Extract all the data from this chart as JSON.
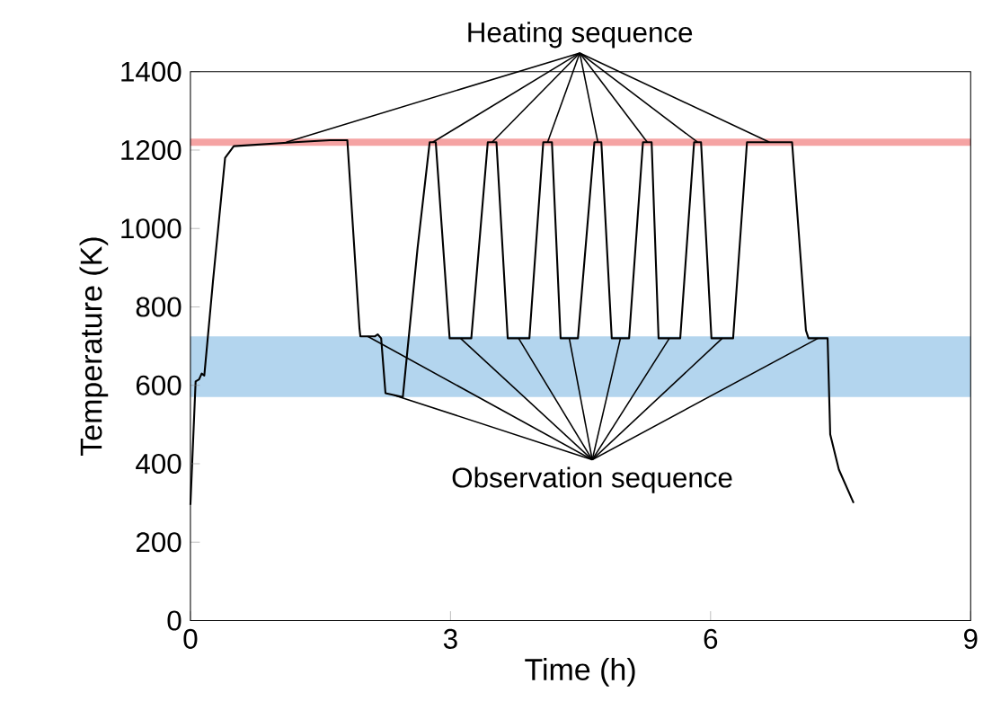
{
  "chart_data": {
    "type": "line",
    "xlabel": "Time (h)",
    "ylabel": "Temperature (K)",
    "xlim": [
      0,
      9
    ],
    "xticks": [
      0,
      3,
      6,
      9
    ],
    "ylim": [
      0,
      1400
    ],
    "yticks": [
      0,
      200,
      400,
      600,
      800,
      1000,
      1200,
      1400
    ],
    "grid": false,
    "series": [
      {
        "color": "#000000",
        "x": [
          0,
          0.06,
          0.1,
          0.13,
          0.16,
          0.26,
          0.4,
          0.5,
          1.2,
          1.61,
          1.81,
          1.95,
          1.96,
          2.13,
          2.16,
          2.2,
          2.25,
          2.45,
          2.62,
          2.76,
          2.83,
          2.99,
          3.24,
          3.43,
          3.53,
          3.66,
          3.91,
          4.07,
          4.17,
          4.27,
          4.47,
          4.66,
          4.74,
          4.86,
          5.06,
          5.22,
          5.32,
          5.4,
          5.65,
          5.81,
          5.89,
          6.01,
          6.26,
          6.42,
          6.94,
          7.1,
          7.13,
          7.35,
          7.38,
          7.48,
          7.65
        ],
        "values": [
          295,
          610,
          615,
          630,
          625,
          865,
          1180,
          1210,
          1220,
          1225,
          1225,
          745,
          725,
          725,
          730,
          720,
          580,
          570,
          950,
          1220,
          1220,
          720,
          720,
          1220,
          1220,
          720,
          720,
          1220,
          1220,
          720,
          720,
          1220,
          1220,
          720,
          720,
          1220,
          1220,
          720,
          720,
          1220,
          1220,
          720,
          720,
          1220,
          1220,
          740,
          720,
          720,
          475,
          385,
          300
        ]
      }
    ],
    "ref_lines": [
      {
        "axis": "y",
        "value": 1220,
        "color": "#f5a3a3"
      }
    ],
    "bands": [
      {
        "axis": "y",
        "from": 570,
        "to": 725,
        "color": "#b3d5ee"
      }
    ],
    "annotations": [
      {
        "text": "Heating sequence",
        "x": 4.12,
        "y": 1220
      },
      {
        "text": "Observation sequence",
        "x": 4.37,
        "y": 720
      }
    ]
  }
}
